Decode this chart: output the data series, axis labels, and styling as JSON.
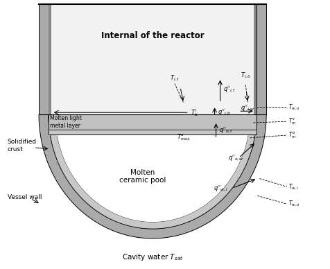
{
  "bg_color": "#ffffff",
  "gray_vessel": "#aaaaaa",
  "gray_crust": "#c8c8c8",
  "gray_metal": "#c0c0c0",
  "white": "#ffffff",
  "reactor_label": "Internal of the reactor",
  "pool_label": "Molten\nceramic pool",
  "metal_layer_label": "Molten light\nmetal layer",
  "solidified_crust_label": "Solidified\ncrust",
  "vessel_wall_label": "Vessel wall",
  "cavity_label": "Cavity water $T_{sat}$"
}
